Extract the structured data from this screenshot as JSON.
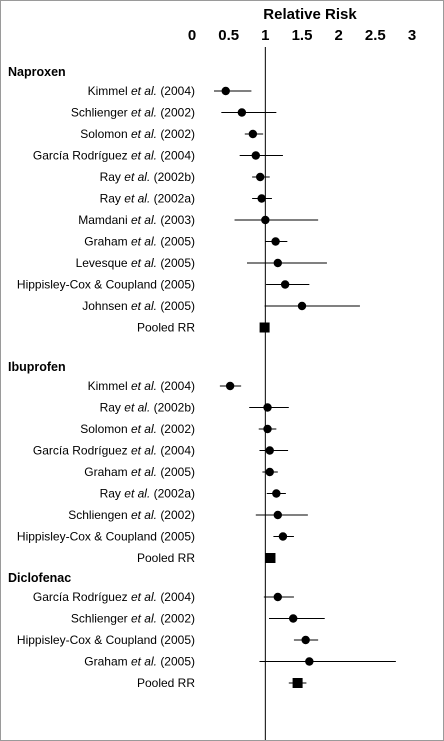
{
  "chart_data": {
    "type": "forest",
    "title": "Relative Risk",
    "xlim": [
      0,
      3
    ],
    "xticks": [
      "0",
      "0.5",
      "1",
      "1.5",
      "2",
      "2.5",
      "3"
    ],
    "reference_line": 1,
    "groups": [
      {
        "name": "Naproxen",
        "studies": [
          {
            "author": "Kimmel",
            "etal": "et al.",
            "year": "(2004)",
            "rr": 0.46,
            "lo": 0.3,
            "hi": 0.81
          },
          {
            "author": "Schlienger",
            "etal": "et al.",
            "year": "(2002)",
            "rr": 0.68,
            "lo": 0.4,
            "hi": 1.15
          },
          {
            "author": "Solomon",
            "etal": "et al.",
            "year": "(2002)",
            "rr": 0.83,
            "lo": 0.72,
            "hi": 0.97
          },
          {
            "author": "García Rodríguez",
            "etal": "et al.",
            "year": "(2004)",
            "rr": 0.87,
            "lo": 0.65,
            "hi": 1.24
          },
          {
            "author": "Ray",
            "etal": "et al.",
            "year": "(2002b)",
            "rr": 0.93,
            "lo": 0.82,
            "hi": 1.06
          },
          {
            "author": "Ray",
            "etal": "et al.",
            "year": "(2002a)",
            "rr": 0.95,
            "lo": 0.82,
            "hi": 1.09
          },
          {
            "author": "Mamdani",
            "etal": "et al.",
            "year": "(2003)",
            "rr": 1.0,
            "lo": 0.58,
            "hi": 1.72
          },
          {
            "author": "Graham",
            "etal": "et al.",
            "year": "(2005)",
            "rr": 1.14,
            "lo": 1.0,
            "hi": 1.3
          },
          {
            "author": "Levesque",
            "etal": "et al.",
            "year": "(2005)",
            "rr": 1.17,
            "lo": 0.75,
            "hi": 1.84
          },
          {
            "author": "Hippisley-Cox & Coupland",
            "etal": "",
            "year": "(2005)",
            "rr": 1.27,
            "lo": 1.01,
            "hi": 1.6
          },
          {
            "author": "Johnsen",
            "etal": "et al.",
            "year": "(2005)",
            "rr": 1.5,
            "lo": 0.99,
            "hi": 2.29
          }
        ],
        "pooled": {
          "label": "Pooled RR",
          "rr": 0.99,
          "lo": 0.98,
          "hi": 1.01
        }
      },
      {
        "name": "Ibuprofen",
        "studies": [
          {
            "author": "Kimmel",
            "etal": "et al.",
            "year": "(2004)",
            "rr": 0.52,
            "lo": 0.38,
            "hi": 0.67
          },
          {
            "author": "Ray",
            "etal": "et al.",
            "year": "(2002b)",
            "rr": 1.03,
            "lo": 0.78,
            "hi": 1.32
          },
          {
            "author": "Solomon",
            "etal": "et al.",
            "year": "(2002)",
            "rr": 1.03,
            "lo": 0.91,
            "hi": 1.15
          },
          {
            "author": "García Rodríguez",
            "etal": "et al.",
            "year": "(2004)",
            "rr": 1.06,
            "lo": 0.92,
            "hi": 1.31
          },
          {
            "author": "Graham",
            "etal": "et al.",
            "year": "(2005)",
            "rr": 1.06,
            "lo": 0.96,
            "hi": 1.17
          },
          {
            "author": "Ray",
            "etal": "et al.",
            "year": "(2002a)",
            "rr": 1.15,
            "lo": 1.02,
            "hi": 1.28
          },
          {
            "author": "Schliengen",
            "etal": "et al.",
            "year": "(2002)",
            "rr": 1.17,
            "lo": 0.87,
            "hi": 1.58
          },
          {
            "author": "Hippisley-Cox & Coupland",
            "etal": "",
            "year": "(2005)",
            "rr": 1.24,
            "lo": 1.11,
            "hi": 1.39
          }
        ],
        "pooled": {
          "label": "Pooled RR",
          "rr": 1.07,
          "lo": 1.02,
          "hi": 1.12
        }
      },
      {
        "name": "Diclofenac",
        "studies": [
          {
            "author": "García Rodríguez",
            "etal": "et al.",
            "year": "(2004)",
            "rr": 1.17,
            "lo": 0.98,
            "hi": 1.39
          },
          {
            "author": "Schlienger",
            "etal": "et al.",
            "year": "(2002)",
            "rr": 1.38,
            "lo": 1.05,
            "hi": 1.81
          },
          {
            "author": "Hippisley-Cox & Coupland",
            "etal": "",
            "year": "(2005)",
            "rr": 1.55,
            "lo": 1.39,
            "hi": 1.72
          },
          {
            "author": "Graham",
            "etal": "et al.",
            "year": "(2005)",
            "rr": 1.6,
            "lo": 0.92,
            "hi": 2.78
          }
        ],
        "pooled": {
          "label": "Pooled RR",
          "rr": 1.44,
          "lo": 1.32,
          "hi": 1.56
        }
      }
    ]
  }
}
